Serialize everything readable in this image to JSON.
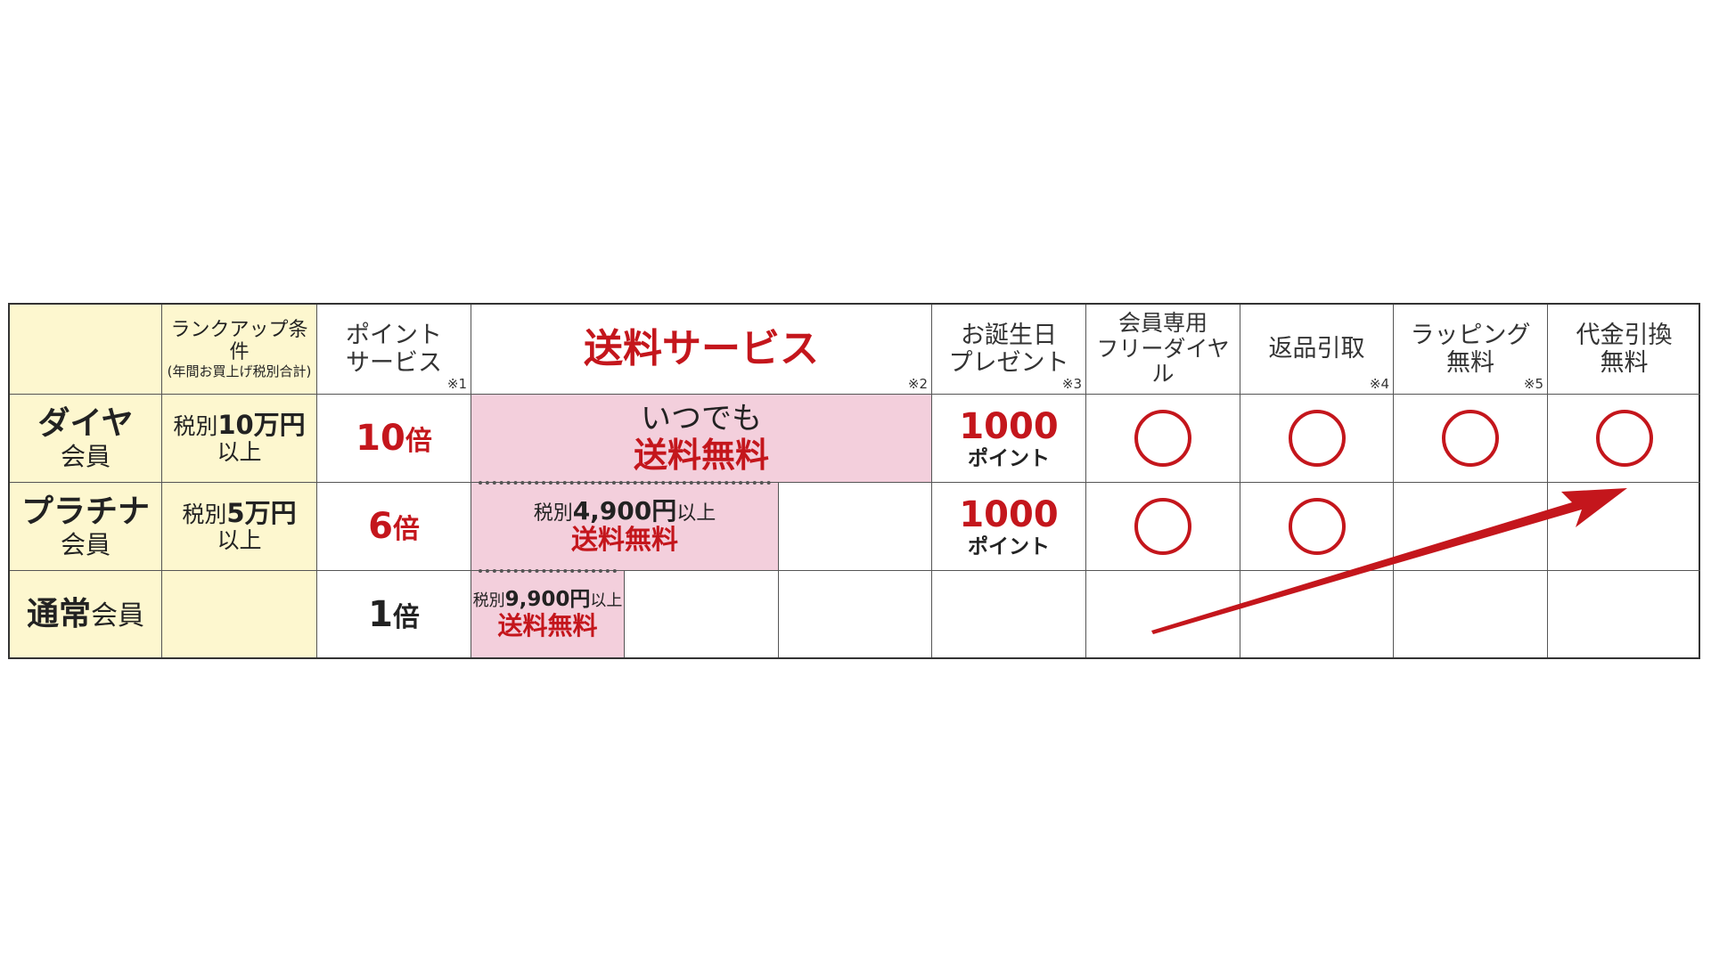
{
  "header": {
    "rank_condition": "ランクアップ条件",
    "rank_condition_sub": "(年間お買上げ税別合計)",
    "point_service": [
      "ポイント",
      "サービス"
    ],
    "point_note": "※1",
    "shipping": "送料サービス",
    "shipping_note": "※2",
    "birthday": [
      "お誕生日",
      "プレゼント"
    ],
    "birthday_note": "※3",
    "freedial": [
      "会員専用",
      "フリーダイヤル"
    ],
    "returns": "返品引取",
    "returns_note": "※4",
    "wrapping": [
      "ラッピング",
      "無料"
    ],
    "wrapping_note": "※5",
    "cod": [
      "代金引換",
      "無料"
    ]
  },
  "rows": [
    {
      "rank": [
        "ダイヤ",
        "会員"
      ],
      "cond_prefix": "税別",
      "cond_amount": "10万円",
      "cond_suffix": "以上",
      "points": "10",
      "points_unit": "倍",
      "shipping": [
        "いつでも",
        "送料無料"
      ],
      "birthday": "1000",
      "birthday_unit": "ポイント"
    },
    {
      "rank": [
        "プラチナ",
        "会員"
      ],
      "cond_prefix": "税別",
      "cond_amount": "5万円",
      "cond_suffix": "以上",
      "points": "6",
      "points_unit": "倍",
      "shipping_prefix": "税別",
      "shipping_amount": "4,900円",
      "shipping_suffix": "以上",
      "shipping": "送料無料",
      "birthday": "1000",
      "birthday_unit": "ポイント"
    },
    {
      "rank_a": "通常",
      "rank_b": "会員",
      "points": "1",
      "points_unit": "倍",
      "shipping_prefix": "税別",
      "shipping_amount": "9,900円",
      "shipping_suffix": "以上",
      "shipping": "送料無料"
    }
  ],
  "benefit_mark": "○",
  "colors": {
    "accent_red": "#c4161c",
    "yellow": "#fdf7cf",
    "pink": "#f3cfdc"
  }
}
